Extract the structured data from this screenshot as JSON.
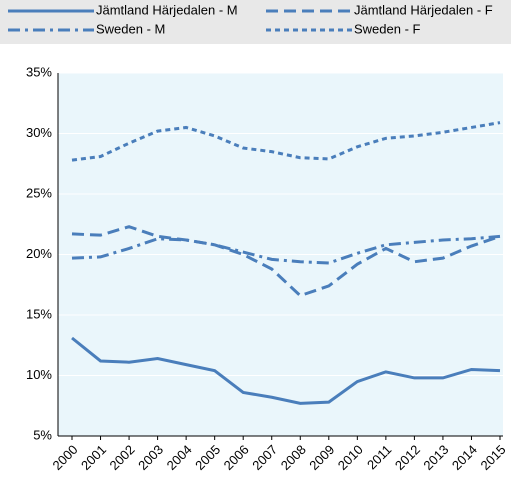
{
  "chart_data": {
    "type": "line",
    "categories": [
      "2000",
      "2001",
      "2002",
      "2003",
      "2004",
      "2005",
      "2006",
      "2007",
      "2008",
      "2009",
      "2010",
      "2011",
      "2012",
      "2013",
      "2014",
      "2015"
    ],
    "series": [
      {
        "name": "Jämtland Härjedalen - M",
        "color": "#4a7ebb",
        "style": "solid",
        "values": [
          13.1,
          11.2,
          11.1,
          11.4,
          10.9,
          10.4,
          8.6,
          8.2,
          7.7,
          7.8,
          9.5,
          10.3,
          9.8,
          9.8,
          10.5,
          10.4
        ]
      },
      {
        "name": "Jämtland Härjedalen - F",
        "color": "#4a7ebb",
        "style": "dash",
        "values": [
          21.7,
          21.6,
          22.3,
          21.5,
          21.2,
          20.8,
          20.0,
          18.8,
          16.6,
          17.4,
          19.2,
          20.5,
          19.4,
          19.7,
          20.7,
          21.5
        ]
      },
      {
        "name": "Sweden - M",
        "color": "#4a7ebb",
        "style": "dashdot",
        "values": [
          19.7,
          19.8,
          20.5,
          21.3,
          21.2,
          20.8,
          20.2,
          19.6,
          19.4,
          19.3,
          20.1,
          20.8,
          21.0,
          21.2,
          21.3,
          21.5
        ]
      },
      {
        "name": "Sweden - F",
        "color": "#4a7ebb",
        "style": "dot",
        "values": [
          27.8,
          28.1,
          29.2,
          30.2,
          30.5,
          29.8,
          28.8,
          28.5,
          28.0,
          27.9,
          28.9,
          29.6,
          29.8,
          30.1,
          30.5,
          30.9
        ]
      }
    ],
    "ylim": [
      5,
      35
    ],
    "yticks": [
      {
        "value": 5,
        "label": "5%"
      },
      {
        "value": 10,
        "label": "10%"
      },
      {
        "value": 15,
        "label": "15%"
      },
      {
        "value": 20,
        "label": "20%"
      },
      {
        "value": 25,
        "label": "25%"
      },
      {
        "value": 30,
        "label": "30%"
      },
      {
        "value": 35,
        "label": "35%"
      }
    ],
    "grid": true
  }
}
